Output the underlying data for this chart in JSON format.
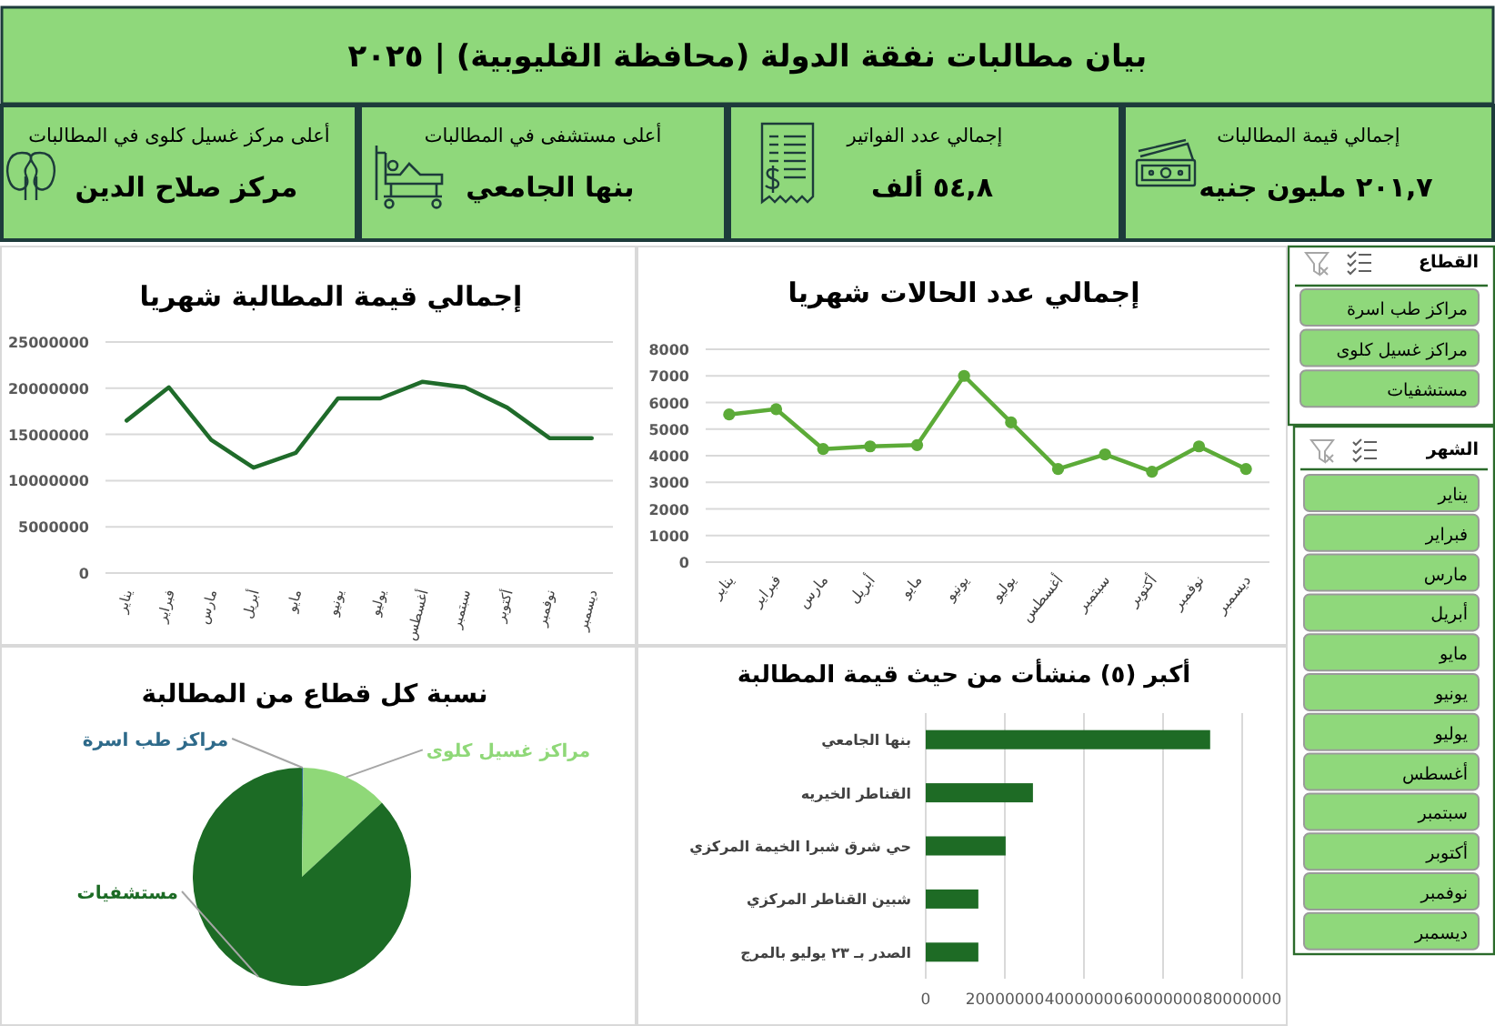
{
  "chart_data": [
    {
      "type": "other",
      "title": "بيان مطالبات نفقة الدولة (محافظة القليوبية) | ٢٠٢٥",
      "annotations": [
        "إجمالي قيمة المطالبات",
        "٢٠١,٧ مليون جنيه",
        "إجمالي عدد الفواتير",
        "٥٤,٨ ألف",
        "أعلى مستشفى في المطالبات",
        "بنها الجامعي",
        "أعلى مركز غسيل كلوى في المطالبات",
        "مركز صلاح الدين"
      ]
    },
    {
      "type": "other",
      "title": "القطاع",
      "annotations": [
        "مراكز طب اسرة",
        "مراكز غسيل كلوى",
        "مستشفيات"
      ]
    },
    {
      "type": "other",
      "title": "الشهر",
      "annotations": [
        "يناير",
        "فبراير",
        "مارس",
        "أبريل",
        "مايو",
        "يونيو",
        "يوليو",
        "أغسطس",
        "سبتمبر",
        "أكتوبر",
        "نوفمبر",
        "ديسمبر"
      ]
    },
    {
      "type": "line",
      "title": "إجمالي عدد الحالات شهريا",
      "categories": [
        "يناير",
        "فبراير",
        "مارس",
        "أبريل",
        "مايو",
        "يونيو",
        "يوليو",
        "أغسطس",
        "سبتمبر",
        "أكتوبر",
        "نوفمبر",
        "ديسمبر"
      ],
      "series": [
        {
          "color": "#5cab38",
          "values": [
            5550,
            5750,
            4250,
            4350,
            4400,
            7000,
            5250,
            3500,
            4050,
            3400,
            4350,
            3500
          ]
        }
      ],
      "ylim": [
        0,
        8000
      ],
      "yticks": [
        0,
        1000,
        2000,
        3000,
        4000,
        5000,
        6000,
        7000,
        8000
      ],
      "grid": "y",
      "marker": "circle"
    },
    {
      "type": "line",
      "title": "إجمالي قيمة المطالبة شهريا",
      "categories": [
        "يناير",
        "فبراير",
        "مارس",
        "أبريل",
        "مايو",
        "يونيو",
        "يوليو",
        "أغسطس",
        "سبتمبر",
        "أكتوبر",
        "نوفمبر",
        "ديسمبر"
      ],
      "series": [
        {
          "color": "#1f6b2a",
          "values": [
            16500000,
            20100000,
            14400000,
            11400000,
            13000000,
            18900000,
            18900000,
            20700000,
            20100000,
            17900000,
            14600000,
            14600000
          ]
        }
      ],
      "ylim": [
        0,
        25000000
      ],
      "yticks": [
        0,
        5000000,
        10000000,
        15000000,
        20000000,
        25000000
      ],
      "grid": "y"
    },
    {
      "type": "bar",
      "orientation": "horizontal",
      "title": "أكبر (٥) منشأت من حيث قيمة المطالبة",
      "categories": [
        "بنها الجامعي",
        "القناطر الخيريه",
        "حي شرق شبرا الخيمة المركزي",
        "شبين القناطر المركزي",
        "الصدر بـ ٢٣ يوليو بالمرج"
      ],
      "values": [
        71900000,
        27100000,
        20200000,
        13300000,
        13300000
      ],
      "color": "#1e6b25",
      "xlim": [
        0,
        80000000
      ],
      "xticks": [
        0,
        20000000,
        40000000,
        60000000,
        80000000
      ],
      "grid": "x"
    },
    {
      "type": "pie",
      "title": "نسبة كل قطاع من المطالبة",
      "categories": [
        "مراكز طب اسرة",
        "مراكز غسيل كلوى",
        "مستشفيات"
      ],
      "values": [
        0.2,
        12.9,
        86.9
      ],
      "colors": [
        "#2e6a8a",
        "#8fd878",
        "#1c6b25"
      ]
    }
  ]
}
